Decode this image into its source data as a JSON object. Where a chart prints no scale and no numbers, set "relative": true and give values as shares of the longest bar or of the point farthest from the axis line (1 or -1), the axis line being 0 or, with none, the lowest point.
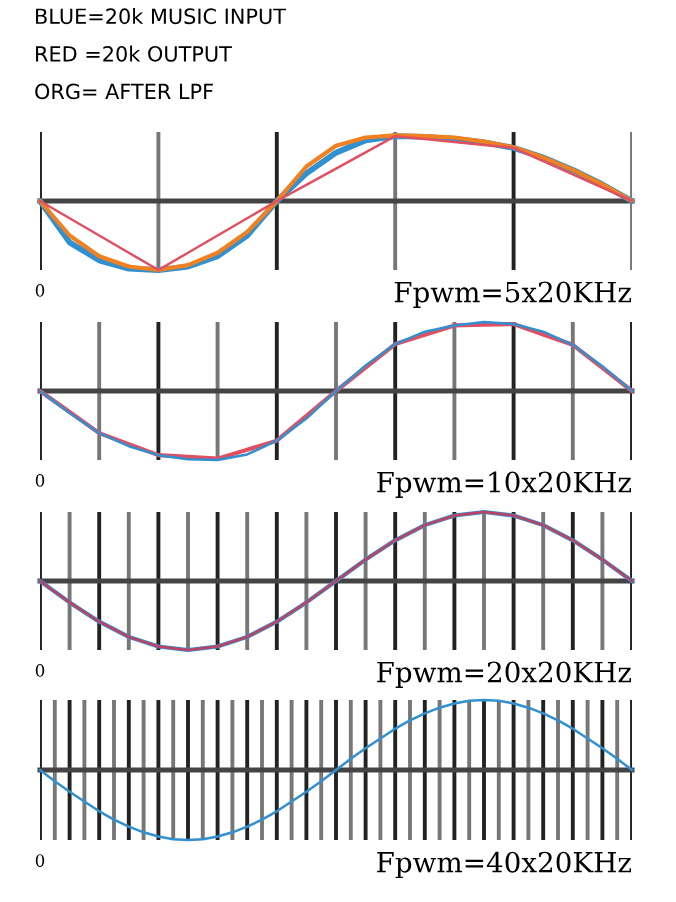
{
  "chart_data": [
    {
      "type": "line",
      "relative": true,
      "title": "BLUE=20k MUSIC INPUT\nRED =20k OUTPUT\nORG= AFTER LPF",
      "annotations": [
        "0"
      ],
      "xlabel": "Fpwm=5x20KHz",
      "grid": "x",
      "categories": [
        null,
        null,
        null,
        null,
        null,
        null,
        null,
        null,
        null,
        null,
        null,
        null,
        null,
        null,
        null,
        null,
        null,
        null,
        null,
        null,
        null
      ],
      "series": [
        {
          "color": "#3090d0",
          "values": [
            0,
            -0.6,
            -0.86,
            -0.98,
            -1,
            -0.95,
            -0.8,
            -0.5,
            0,
            0.4,
            0.7,
            0.88,
            0.94,
            0.93,
            0.9,
            0.85,
            0.77,
            0.63,
            0.45,
            0.24,
            0
          ]
        },
        {
          "color": "#f08020",
          "values": [
            0,
            -0.5,
            -0.8,
            -0.95,
            -1,
            -0.93,
            -0.75,
            -0.45,
            0,
            0.5,
            0.8,
            0.92,
            0.95,
            0.94,
            0.92,
            0.86,
            0.78,
            0.63,
            0.45,
            0.24,
            0
          ]
        },
        {
          "color": "#e05060",
          "values": [
            0,
            -0.25,
            -0.5,
            -0.75,
            -1,
            -0.75,
            -0.5,
            -0.25,
            0,
            0.235,
            0.47,
            0.705,
            0.94,
            0.8975,
            0.855,
            0.8125,
            0.77,
            0.5775,
            0.385,
            0.1925,
            0
          ]
        }
      ]
    },
    {
      "type": "line",
      "relative": true,
      "annotations": [
        "0"
      ],
      "xlabel": "Fpwm=10x20KHz",
      "grid": "x",
      "categories": [
        null,
        null,
        null,
        null,
        null,
        null,
        null,
        null,
        null,
        null,
        null,
        null,
        null,
        null,
        null,
        null,
        null,
        null,
        null,
        null,
        null
      ],
      "series": [
        {
          "color": "#e05060",
          "values": [
            0,
            -0.305,
            -0.61,
            -0.77,
            -0.93,
            -0.955,
            -0.98,
            -0.85,
            -0.72,
            -0.36,
            0,
            0.34,
            0.68,
            0.815,
            0.95,
            0.96,
            0.97,
            0.82,
            0.67,
            0.335,
            0
          ]
        },
        {
          "color": "#3090d0",
          "values": [
            0,
            -0.32,
            -0.61,
            -0.8,
            -0.93,
            -0.99,
            -1,
            -0.92,
            -0.72,
            -0.4,
            0,
            0.37,
            0.68,
            0.86,
            0.95,
            1,
            0.97,
            0.86,
            0.67,
            0.36,
            0
          ]
        }
      ]
    },
    {
      "type": "line",
      "relative": true,
      "annotations": [
        "0"
      ],
      "xlabel": "Fpwm=20x20KHz",
      "grid": "x",
      "categories": [
        null,
        null,
        null,
        null,
        null,
        null,
        null,
        null,
        null,
        null,
        null,
        null,
        null,
        null,
        null,
        null,
        null,
        null,
        null,
        null,
        null
      ],
      "series": [
        {
          "color": "#3090d0",
          "values": [
            0,
            -0.31,
            -0.59,
            -0.81,
            -0.95,
            -1,
            -0.95,
            -0.81,
            -0.59,
            -0.31,
            0,
            0.31,
            0.59,
            0.81,
            0.95,
            1,
            0.95,
            0.81,
            0.59,
            0.31,
            0
          ]
        },
        {
          "color": "#c04060",
          "values": [
            0,
            -0.31,
            -0.59,
            -0.81,
            -0.95,
            -1,
            -0.95,
            -0.81,
            -0.59,
            -0.31,
            0,
            0.31,
            0.59,
            0.81,
            0.95,
            1,
            0.95,
            0.81,
            0.59,
            0.31,
            0
          ]
        }
      ]
    },
    {
      "type": "line",
      "relative": true,
      "annotations": [
        "0"
      ],
      "xlabel": "Fpwm=40x20KHz",
      "grid": "x",
      "categories": [
        null,
        null,
        null,
        null,
        null,
        null,
        null,
        null,
        null,
        null,
        null,
        null,
        null,
        null,
        null,
        null,
        null,
        null,
        null,
        null,
        null,
        null,
        null,
        null,
        null,
        null,
        null,
        null,
        null,
        null,
        null,
        null,
        null,
        null,
        null,
        null,
        null,
        null,
        null,
        null,
        null
      ],
      "series": [
        {
          "color": "#3090d0",
          "values": [
            0,
            -0.16,
            -0.31,
            -0.45,
            -0.59,
            -0.71,
            -0.81,
            -0.89,
            -0.95,
            -0.99,
            -1,
            -0.99,
            -0.95,
            -0.89,
            -0.81,
            -0.71,
            -0.59,
            -0.45,
            -0.31,
            -0.16,
            0,
            0.16,
            0.31,
            0.45,
            0.59,
            0.71,
            0.81,
            0.89,
            0.95,
            0.99,
            1,
            0.99,
            0.95,
            0.89,
            0.81,
            0.71,
            0.59,
            0.45,
            0.31,
            0.16,
            0
          ]
        }
      ]
    }
  ]
}
